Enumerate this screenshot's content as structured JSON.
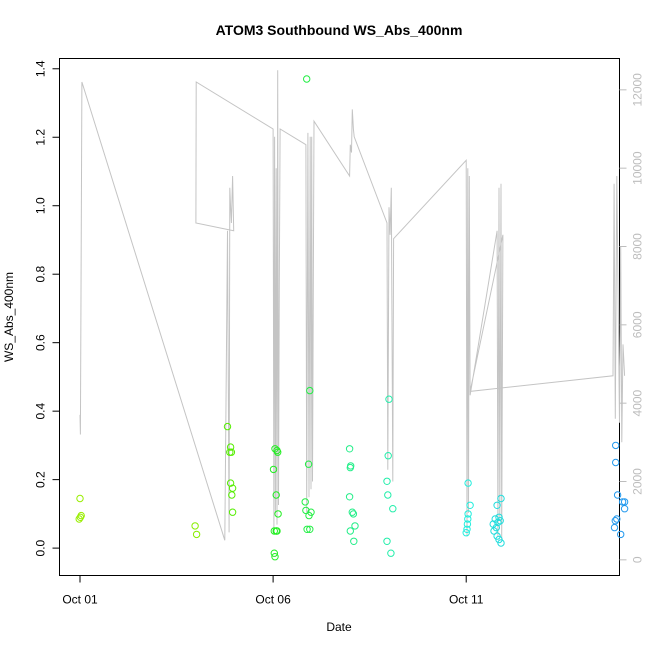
{
  "chart_data": {
    "type": "scatter",
    "title": "ATOM3 Southbound WS_Abs_400nm",
    "xlabel": "Date",
    "ylabel": "WS_Abs_400nm",
    "x_ticks": [
      {
        "label": "Oct 01",
        "value": 1
      },
      {
        "label": "Oct 06",
        "value": 6
      },
      {
        "label": "Oct 11",
        "value": 11
      }
    ],
    "x_range": [
      1,
      15.5
    ],
    "y_ticks": [
      "0.0",
      "0.2",
      "0.4",
      "0.6",
      "0.8",
      "1.0",
      "1.2",
      "1.4"
    ],
    "y_range": [
      -0.08,
      1.43
    ],
    "y2_ticks": [
      "0",
      "2000",
      "4000",
      "6000",
      "8000",
      "10000",
      "12000"
    ],
    "y2_range": [
      -400,
      12800
    ],
    "grid": false,
    "series": [
      {
        "type": "scatter",
        "points": [
          [
            1.0,
            0.145,
            "#99ee00"
          ],
          [
            1.03,
            0.095,
            "#99ee00"
          ],
          [
            0.98,
            0.085,
            "#99ee00"
          ],
          [
            1.01,
            0.09,
            "#99ee00"
          ],
          [
            3.98,
            0.065,
            "#88ee00"
          ],
          [
            4.02,
            0.04,
            "#88ee00"
          ],
          [
            4.82,
            0.355,
            "#55ee00"
          ],
          [
            4.9,
            0.295,
            "#55ee00"
          ],
          [
            4.92,
            0.28,
            "#55ee00"
          ],
          [
            4.88,
            0.28,
            "#55ee00"
          ],
          [
            4.9,
            0.19,
            "#55ee00"
          ],
          [
            4.95,
            0.175,
            "#55ee00"
          ],
          [
            4.93,
            0.155,
            "#55ee00"
          ],
          [
            4.95,
            0.105,
            "#55ee00"
          ],
          [
            6.01,
            0.23,
            "#22ee22"
          ],
          [
            6.05,
            0.29,
            "#22ee22"
          ],
          [
            6.1,
            0.285,
            "#22ee22"
          ],
          [
            6.12,
            0.28,
            "#22ee22"
          ],
          [
            6.08,
            0.155,
            "#22ee22"
          ],
          [
            6.13,
            0.1,
            "#22ee22"
          ],
          [
            6.03,
            0.05,
            "#22ee22"
          ],
          [
            6.08,
            0.05,
            "#22ee22"
          ],
          [
            6.1,
            0.05,
            "#22ee22"
          ],
          [
            6.03,
            -0.015,
            "#22ee22"
          ],
          [
            6.05,
            -0.025,
            "#22ee22"
          ],
          [
            6.87,
            1.37,
            "#22ee44"
          ],
          [
            6.95,
            0.46,
            "#22ee44"
          ],
          [
            6.92,
            0.245,
            "#22ee44"
          ],
          [
            6.83,
            0.135,
            "#22ee44"
          ],
          [
            6.85,
            0.11,
            "#22ee44"
          ],
          [
            6.98,
            0.105,
            "#22ee44"
          ],
          [
            6.93,
            0.095,
            "#22ee44"
          ],
          [
            6.88,
            0.055,
            "#22ee44"
          ],
          [
            6.95,
            0.055,
            "#22ee44"
          ],
          [
            7.98,
            0.29,
            "#22ee88"
          ],
          [
            8.0,
            0.235,
            "#22ee88"
          ],
          [
            8.01,
            0.24,
            "#22ee88"
          ],
          [
            7.98,
            0.15,
            "#22ee88"
          ],
          [
            8.05,
            0.105,
            "#22ee88"
          ],
          [
            8.08,
            0.1,
            "#22ee88"
          ],
          [
            8.12,
            0.065,
            "#22ee88"
          ],
          [
            8.0,
            0.05,
            "#22ee88"
          ],
          [
            8.09,
            0.02,
            "#22ee88"
          ],
          [
            9.0,
            0.435,
            "#22eeaa"
          ],
          [
            8.98,
            0.27,
            "#22eeaa"
          ],
          [
            8.95,
            0.195,
            "#22eeaa"
          ],
          [
            8.97,
            0.155,
            "#22eeaa"
          ],
          [
            9.1,
            0.115,
            "#22eeaa"
          ],
          [
            8.95,
            0.02,
            "#22eeaa"
          ],
          [
            9.05,
            -0.015,
            "#22eeaa"
          ],
          [
            11.05,
            0.19,
            "#22eedd"
          ],
          [
            11.1,
            0.125,
            "#22eedd"
          ],
          [
            11.05,
            0.1,
            "#22eedd"
          ],
          [
            11.04,
            0.085,
            "#22eedd"
          ],
          [
            11.03,
            0.07,
            "#22eedd"
          ],
          [
            11.02,
            0.055,
            "#22eedd"
          ],
          [
            11.0,
            0.045,
            "#22eedd"
          ],
          [
            11.9,
            0.145,
            "#22dddd"
          ],
          [
            11.8,
            0.125,
            "#22dddd"
          ],
          [
            11.75,
            0.085,
            "#22dddd"
          ],
          [
            11.85,
            0.09,
            "#22dddd"
          ],
          [
            11.88,
            0.08,
            "#22dddd"
          ],
          [
            11.82,
            0.075,
            "#22dddd"
          ],
          [
            11.7,
            0.07,
            "#22dddd"
          ],
          [
            11.78,
            0.06,
            "#22dddd"
          ],
          [
            11.72,
            0.05,
            "#22dddd"
          ],
          [
            11.8,
            0.035,
            "#22dddd"
          ],
          [
            11.85,
            0.025,
            "#22dddd"
          ],
          [
            11.9,
            0.015,
            "#22dddd"
          ],
          [
            14.87,
            0.3,
            "#2299ee"
          ],
          [
            14.87,
            0.25,
            "#2299ee"
          ],
          [
            14.92,
            0.155,
            "#2299ee"
          ],
          [
            15.05,
            0.135,
            "#2299ee"
          ],
          [
            15.1,
            0.135,
            "#2299ee"
          ],
          [
            15.1,
            0.115,
            "#2299ee"
          ],
          [
            14.9,
            0.085,
            "#2299ee"
          ],
          [
            14.86,
            0.08,
            "#2299ee"
          ],
          [
            14.84,
            0.06,
            "#2299ee"
          ],
          [
            15.0,
            0.04,
            "#2299ee"
          ]
        ]
      },
      {
        "type": "line",
        "axis": "right",
        "color": "#c4c4c4",
        "points": [
          [
            1.0,
            3700
          ],
          [
            1.01,
            3200
          ],
          [
            1.05,
            12200
          ],
          [
            4.75,
            500
          ],
          [
            4.82,
            8400
          ],
          [
            4.86,
            700
          ],
          [
            4.88,
            9500
          ],
          [
            4.9,
            9000
          ],
          [
            4.92,
            8600
          ],
          [
            4.95,
            9800
          ],
          [
            4.98,
            8400
          ],
          [
            4.0,
            8600
          ],
          [
            4.01,
            12200
          ],
          [
            6.0,
            11000
          ],
          [
            6.02,
            800
          ],
          [
            6.04,
            10800
          ],
          [
            6.06,
            1200
          ],
          [
            6.08,
            10000
          ],
          [
            6.1,
            900
          ],
          [
            6.12,
            12500
          ],
          [
            6.14,
            1400
          ],
          [
            6.16,
            7000
          ],
          [
            6.18,
            11000
          ],
          [
            6.85,
            10600
          ],
          [
            6.87,
            1200
          ],
          [
            6.9,
            10900
          ],
          [
            6.93,
            1600
          ],
          [
            6.96,
            10800
          ],
          [
            6.98,
            1800
          ],
          [
            7.0,
            10800
          ],
          [
            7.02,
            2000
          ],
          [
            7.06,
            11200
          ],
          [
            7.98,
            9800
          ],
          [
            8.0,
            10600
          ],
          [
            8.03,
            10400
          ],
          [
            8.05,
            11500
          ],
          [
            8.08,
            11000
          ],
          [
            8.1,
            10800
          ],
          [
            8.95,
            8600
          ],
          [
            8.97,
            2300
          ],
          [
            9.0,
            9000
          ],
          [
            9.03,
            8300
          ],
          [
            9.06,
            9500
          ],
          [
            9.1,
            2000
          ],
          [
            9.12,
            8200
          ],
          [
            11.0,
            10200
          ],
          [
            11.02,
            600
          ],
          [
            11.04,
            10000
          ],
          [
            11.06,
            1200
          ],
          [
            11.08,
            9800
          ],
          [
            11.1,
            4200
          ],
          [
            11.8,
            8400
          ],
          [
            11.82,
            600
          ],
          [
            11.85,
            9500
          ],
          [
            11.87,
            1000
          ],
          [
            11.9,
            9600
          ],
          [
            11.92,
            500
          ],
          [
            11.95,
            8300
          ],
          [
            11.1,
            4300
          ],
          [
            14.8,
            4700
          ],
          [
            14.83,
            9600
          ],
          [
            14.86,
            3600
          ],
          [
            14.9,
            9800
          ],
          [
            14.93,
            7000
          ],
          [
            14.97,
            3500
          ],
          [
            15.0,
            8000
          ],
          [
            15.03,
            3000
          ],
          [
            15.06,
            5500
          ],
          [
            15.1,
            4700
          ]
        ]
      }
    ]
  }
}
